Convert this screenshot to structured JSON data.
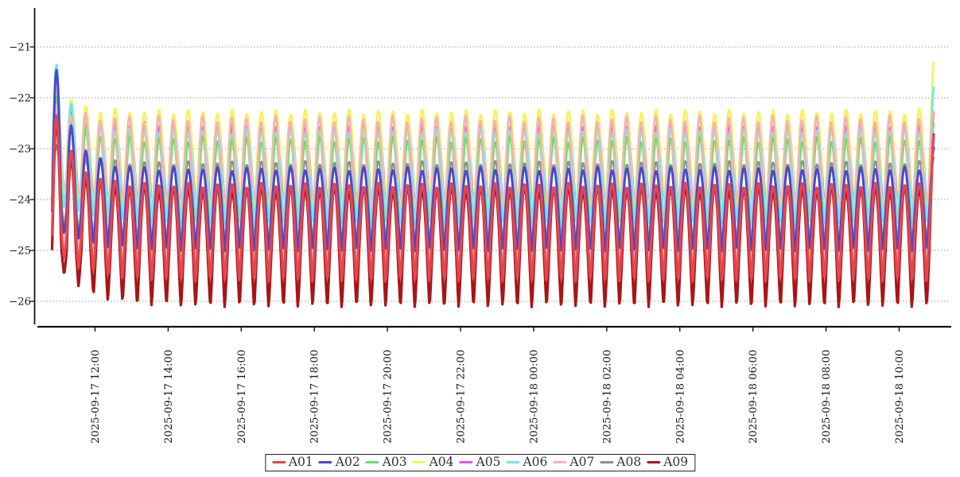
{
  "chart_data": {
    "type": "line",
    "title": "",
    "x_axis": {
      "tick_labels": [
        "2025-09-17 12:00",
        "2025-09-17 14:00",
        "2025-09-17 16:00",
        "2025-09-17 18:00",
        "2025-09-17 20:00",
        "2025-09-17 22:00",
        "2025-09-18 00:00",
        "2025-09-18 02:00",
        "2025-09-18 04:00",
        "2025-09-18 06:00",
        "2025-09-18 08:00",
        "2025-09-18 10:00"
      ],
      "tick_interval_hours": 2,
      "start": "2025-09-17 10:49",
      "end": "2025-09-18 10:58"
    },
    "y_axis": {
      "tick_labels": [
        "−21",
        "−22",
        "−23",
        "−24",
        "−25",
        "−26"
      ],
      "tick_values": [
        -21,
        -22,
        -23,
        -24,
        -25,
        -26
      ],
      "range_top": -20.2,
      "range_bottom": -26.5,
      "gridlines": "dashed"
    },
    "wave": {
      "period_minutes": 24,
      "t_start_hours": -1.175,
      "t_end_hours": 22.96,
      "peak_phase_hours": 0.152,
      "peak_sharpness": 0.62,
      "start_boost_tau_hours": 0.5,
      "trough_lift_tau_hours": 0.8,
      "end_spike_rise_hours": 0.45,
      "cycle_jitter": 0.05
    },
    "series": [
      {
        "name": "A01",
        "color": "#e6464d",
        "steady_peak": -23.72,
        "steady_trough": -25.62,
        "start_peak_boost": 1.8,
        "start_trough_lift": 0.7,
        "end_spike": 1.1,
        "line_width": 3.2,
        "phase_shift_hours": 0
      },
      {
        "name": "A02",
        "color": "#4a48cf",
        "steady_peak": -23.4,
        "steady_trough": -25.02,
        "start_peak_boost": 2.45,
        "start_trough_lift": 0.55,
        "end_spike": 0.45,
        "line_width": 3.0,
        "phase_shift_hours": 0
      },
      {
        "name": "A03",
        "color": "#5fe469",
        "steady_peak": -22.82,
        "steady_trough": -25.12,
        "start_peak_boost": 1.05,
        "start_trough_lift": 0.6,
        "end_spike": 0.28,
        "line_width": 2.8,
        "phase_shift_hours": 0
      },
      {
        "name": "A04",
        "color": "#f5f266",
        "steady_peak": -22.28,
        "steady_trough": -24.42,
        "start_peak_boost": 0.62,
        "start_trough_lift": 0.5,
        "end_spike": 1.08,
        "line_width": 3.0,
        "phase_shift_hours": 0
      },
      {
        "name": "A05",
        "color": "#e156de",
        "steady_peak": -22.52,
        "steady_trough": -24.32,
        "start_peak_boost": 0.72,
        "start_trough_lift": 0.5,
        "end_spike": 0.35,
        "line_width": 2.6,
        "phase_shift_hours": 0.018
      },
      {
        "name": "A06",
        "color": "#70e7ee",
        "steady_peak": -22.66,
        "steady_trough": -24.5,
        "start_peak_boost": 1.62,
        "start_trough_lift": 0.55,
        "end_spike": 0.9,
        "line_width": 2.8,
        "phase_shift_hours": 0
      },
      {
        "name": "A07",
        "color": "#f2b3ba",
        "steady_peak": -22.42,
        "steady_trough": -25.42,
        "start_peak_boost": 0.35,
        "start_trough_lift": 0.6,
        "end_spike": 0.12,
        "line_width": 2.6,
        "phase_shift_hours": -0.012
      },
      {
        "name": "A08",
        "color": "#8f8f8f",
        "steady_peak": -23.28,
        "steady_trough": -24.88,
        "start_peak_boost": 0.5,
        "start_trough_lift": 0.55,
        "end_spike": 0.15,
        "line_width": 2.6,
        "phase_shift_hours": 0
      },
      {
        "name": "A09",
        "color": "#a81518",
        "steady_peak": -23.8,
        "steady_trough": -26.12,
        "start_peak_boost": 1.68,
        "start_trough_lift": 1.0,
        "end_spike": 1.18,
        "line_width": 3.2,
        "phase_shift_hours": 0
      }
    ],
    "draw_order": [
      "A05",
      "A08",
      "A04",
      "A06",
      "A03",
      "A07",
      "A02",
      "A09",
      "A01"
    ],
    "legend": {
      "position": "bottom-center",
      "entries": [
        "A01",
        "A02",
        "A03",
        "A04",
        "A05",
        "A06",
        "A07",
        "A08",
        "A09"
      ]
    },
    "colors": {
      "axis": "#111111",
      "grid": "#9a9a9a",
      "tick_text": "#1a1a1a",
      "background": "#ffffff"
    }
  }
}
